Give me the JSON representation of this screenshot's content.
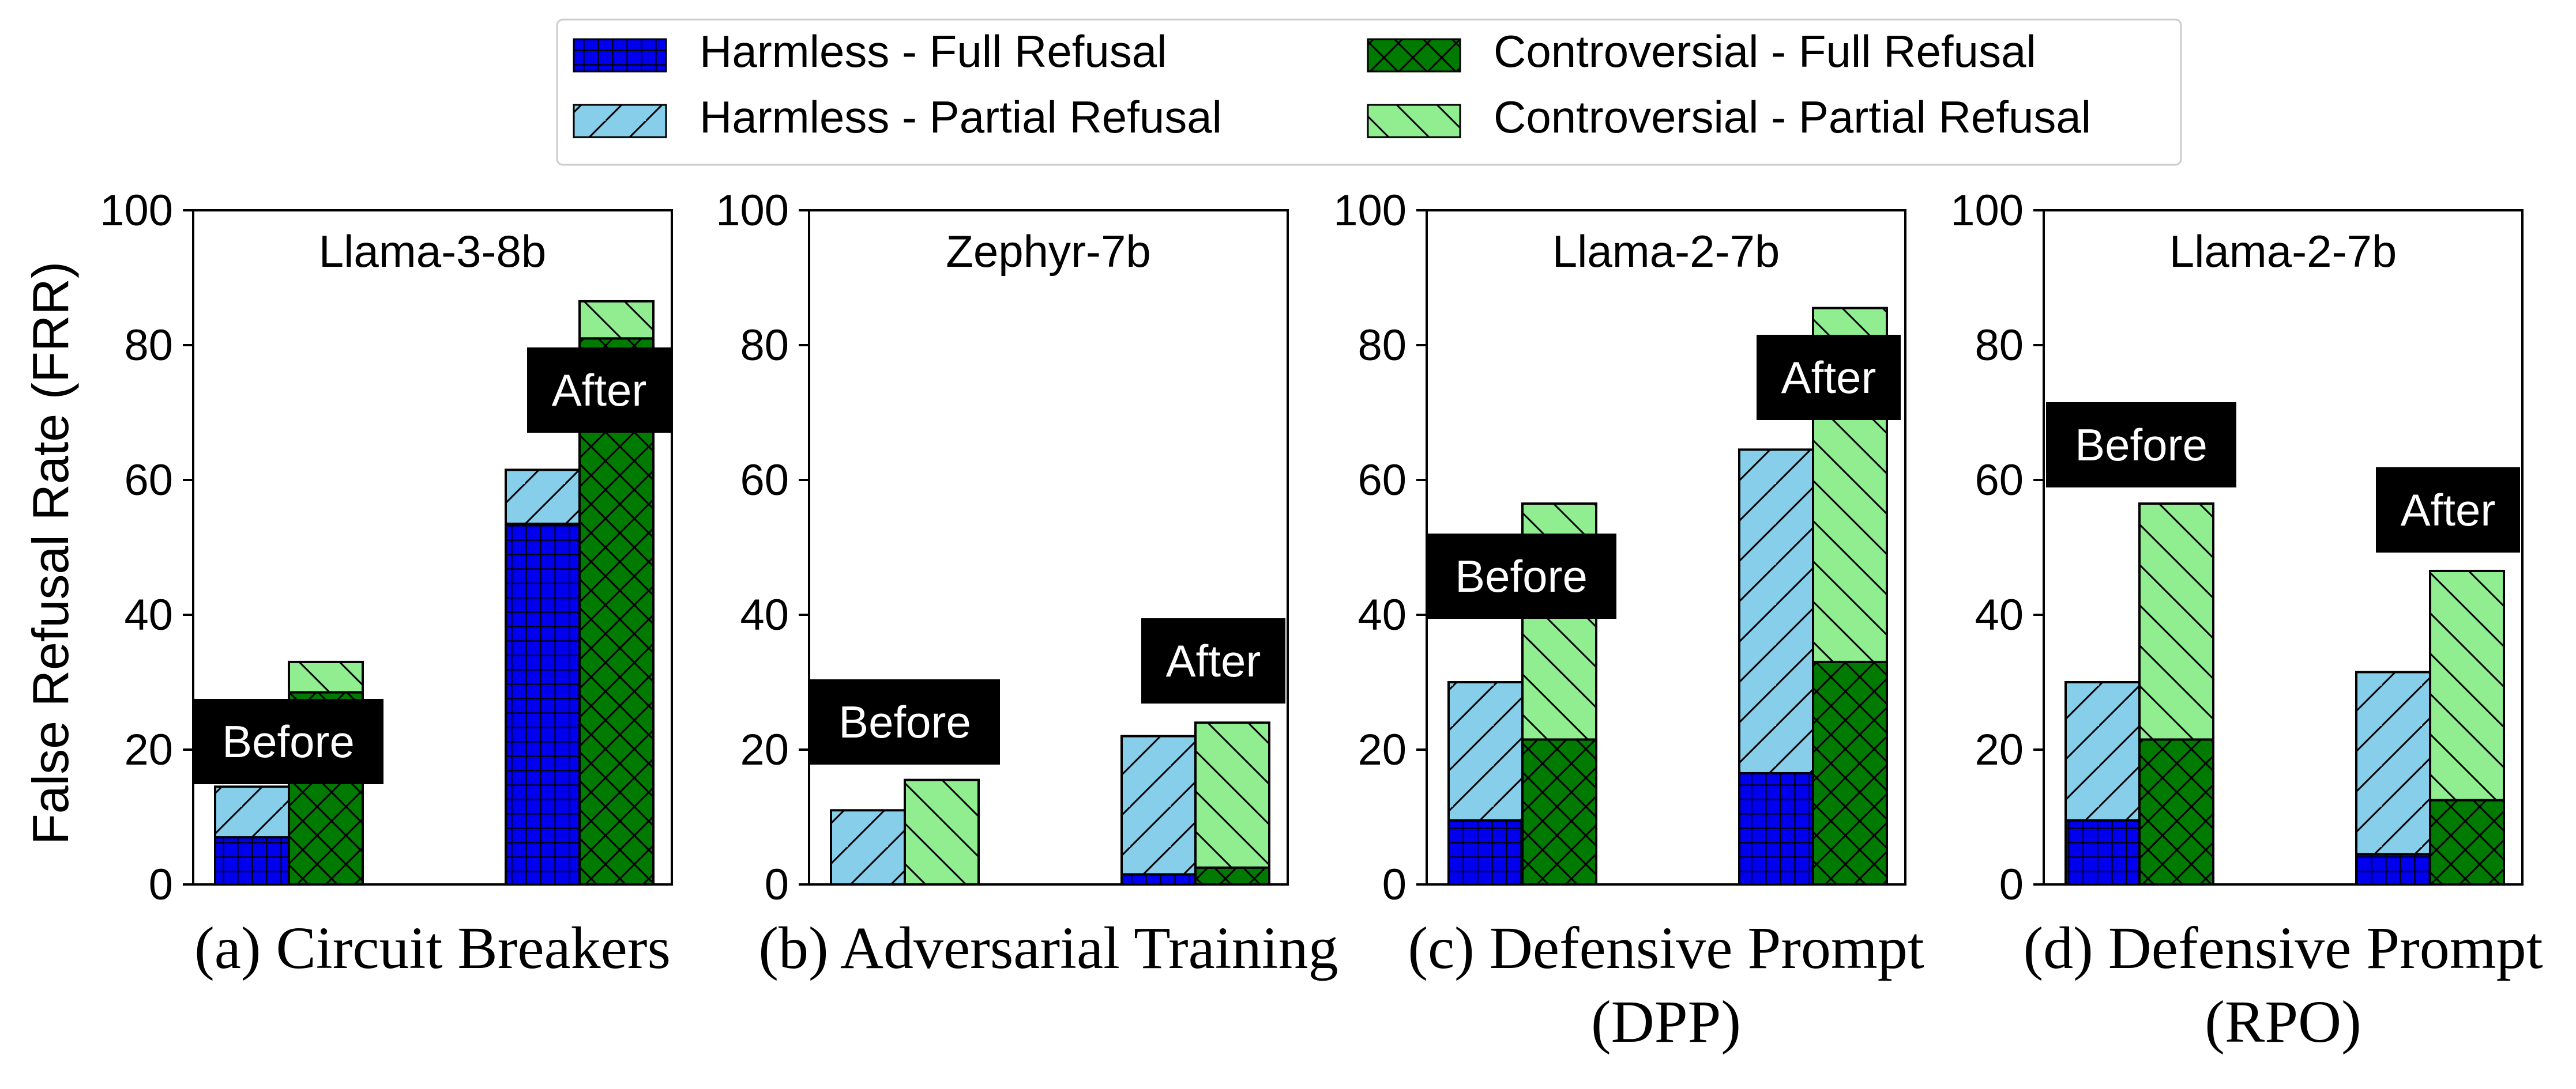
{
  "legend": {
    "placement": "top-center",
    "entries": [
      {
        "key": "harmless_full",
        "label": "Harmless - Full Refusal",
        "color": "#0000ee",
        "hatch": "grid"
      },
      {
        "key": "harmless_partial",
        "label": "Harmless - Partial Refusal",
        "color": "#87ceeb",
        "hatch": "forward-slash"
      },
      {
        "key": "controversial_full",
        "label": "Controversial - Full Refusal",
        "color": "#007a00",
        "hatch": "cross"
      },
      {
        "key": "controversial_partial",
        "label": "Controversial - Partial Refusal",
        "color": "#90ee90",
        "hatch": "back-slash"
      }
    ]
  },
  "ylabel": "False Refusal Rate (FRR)",
  "chart_data": [
    {
      "type": "bar",
      "title": "Llama-3-8b",
      "caption": [
        "(a) Circuit Breakers"
      ],
      "ylim": [
        0,
        100
      ],
      "yticks": [
        "0",
        "20",
        "40",
        "60",
        "80",
        "100"
      ],
      "groups": [
        {
          "label": "Before",
          "harmless_full": 7,
          "harmless_partial": 7.5,
          "controversial_full": 28.5,
          "controversial_partial": 4.5
        },
        {
          "label": "After",
          "harmless_full": 53.5,
          "harmless_partial": 8,
          "controversial_full": 81,
          "controversial_partial": 5.5
        }
      ]
    },
    {
      "type": "bar",
      "title": "Zephyr-7b",
      "caption": [
        "(b) Adversarial Training"
      ],
      "ylim": [
        0,
        100
      ],
      "yticks": [
        "0",
        "20",
        "40",
        "60",
        "80",
        "100"
      ],
      "groups": [
        {
          "label": "Before",
          "harmless_full": 0,
          "harmless_partial": 11,
          "controversial_full": 0,
          "controversial_partial": 15.5
        },
        {
          "label": "After",
          "harmless_full": 1.5,
          "harmless_partial": 20.5,
          "controversial_full": 2.5,
          "controversial_partial": 21.5
        }
      ]
    },
    {
      "type": "bar",
      "title": "Llama-2-7b",
      "caption": [
        "(c) Defensive Prompt",
        "(DPP)"
      ],
      "ylim": [
        0,
        100
      ],
      "yticks": [
        "0",
        "20",
        "40",
        "60",
        "80",
        "100"
      ],
      "groups": [
        {
          "label": "Before",
          "harmless_full": 9.5,
          "harmless_partial": 20.5,
          "controversial_full": 21.5,
          "controversial_partial": 35
        },
        {
          "label": "After",
          "harmless_full": 16.5,
          "harmless_partial": 48,
          "controversial_full": 33,
          "controversial_partial": 52.5
        }
      ]
    },
    {
      "type": "bar",
      "title": "Llama-2-7b",
      "caption": [
        "(d) Defensive Prompt",
        "(RPO)"
      ],
      "ylim": [
        0,
        100
      ],
      "yticks": [
        "0",
        "20",
        "40",
        "60",
        "80",
        "100"
      ],
      "groups": [
        {
          "label": "Before",
          "harmless_full": 9.5,
          "harmless_partial": 20.5,
          "controversial_full": 21.5,
          "controversial_partial": 35
        },
        {
          "label": "After",
          "harmless_full": 4.5,
          "harmless_partial": 27,
          "controversial_full": 12.5,
          "controversial_partial": 34
        }
      ]
    }
  ]
}
